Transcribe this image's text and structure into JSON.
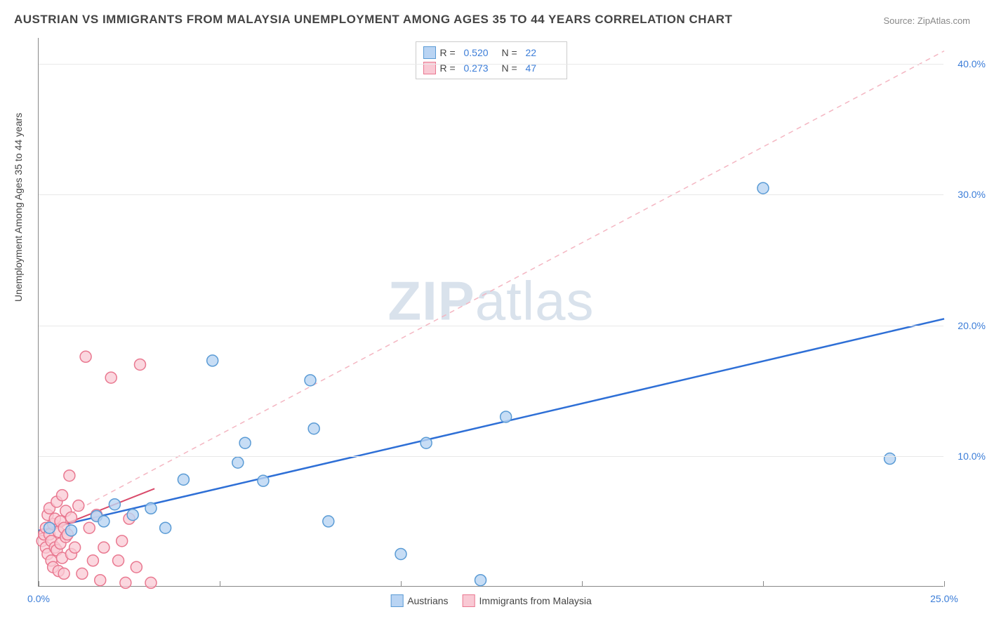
{
  "title": "AUSTRIAN VS IMMIGRANTS FROM MALAYSIA UNEMPLOYMENT AMONG AGES 35 TO 44 YEARS CORRELATION CHART",
  "source": "Source: ZipAtlas.com",
  "watermark": {
    "zip": "ZIP",
    "atlas": "atlas"
  },
  "ylabel": "Unemployment Among Ages 35 to 44 years",
  "chart": {
    "type": "scatter",
    "background_color": "#ffffff",
    "grid_color": "#e8e8e8",
    "axis_color": "#888888",
    "tick_label_color": "#3b7dd8",
    "xlim": [
      0,
      25
    ],
    "ylim": [
      0,
      42
    ],
    "xticks": [
      0,
      5,
      10,
      15,
      20,
      25
    ],
    "xtick_labels": [
      "0.0%",
      "",
      "",
      "",
      "",
      "25.0%"
    ],
    "yticks": [
      10,
      20,
      30,
      40
    ],
    "ytick_labels": [
      "10.0%",
      "20.0%",
      "30.0%",
      "40.0%"
    ],
    "marker_radius": 8,
    "marker_stroke_width": 1.5,
    "series": {
      "austrians": {
        "label": "Austrians",
        "fill": "#b9d4f3",
        "stroke": "#5a9bd5",
        "R": "0.520",
        "N": "22",
        "points": [
          [
            0.3,
            4.5
          ],
          [
            0.9,
            4.3
          ],
          [
            1.6,
            5.4
          ],
          [
            1.8,
            5.0
          ],
          [
            2.1,
            6.3
          ],
          [
            2.6,
            5.5
          ],
          [
            3.1,
            6.0
          ],
          [
            3.5,
            4.5
          ],
          [
            4.0,
            8.2
          ],
          [
            4.8,
            17.3
          ],
          [
            5.5,
            9.5
          ],
          [
            5.7,
            11.0
          ],
          [
            6.2,
            8.1
          ],
          [
            7.5,
            15.8
          ],
          [
            7.6,
            12.1
          ],
          [
            8.0,
            5.0
          ],
          [
            10.7,
            11.0
          ],
          [
            10.0,
            2.5
          ],
          [
            12.9,
            13.0
          ],
          [
            12.2,
            0.5
          ],
          [
            20.0,
            30.5
          ],
          [
            23.5,
            9.8
          ]
        ],
        "trend_solid": {
          "x1": 0,
          "y1": 4.3,
          "x2": 25,
          "y2": 20.5,
          "stroke": "#2e6fd6",
          "width": 2.5
        },
        "trend_dashed": {
          "x1": 0,
          "y1": 4.3,
          "x2": 25,
          "y2": 41.0,
          "stroke": "#f4b6c2",
          "width": 1.5,
          "dash": "7,6"
        }
      },
      "malaysia": {
        "label": "Immigrants from Malaysia",
        "fill": "#f9c9d4",
        "stroke": "#e97890",
        "R": "0.273",
        "N": "47",
        "points": [
          [
            0.1,
            3.5
          ],
          [
            0.15,
            4.0
          ],
          [
            0.2,
            4.5
          ],
          [
            0.2,
            3.0
          ],
          [
            0.25,
            5.5
          ],
          [
            0.25,
            2.5
          ],
          [
            0.3,
            6.0
          ],
          [
            0.3,
            4.0
          ],
          [
            0.35,
            3.5
          ],
          [
            0.35,
            2.0
          ],
          [
            0.4,
            4.8
          ],
          [
            0.4,
            1.5
          ],
          [
            0.45,
            5.2
          ],
          [
            0.45,
            3.0
          ],
          [
            0.5,
            6.5
          ],
          [
            0.5,
            2.8
          ],
          [
            0.55,
            4.2
          ],
          [
            0.55,
            1.2
          ],
          [
            0.6,
            5.0
          ],
          [
            0.6,
            3.3
          ],
          [
            0.65,
            7.0
          ],
          [
            0.65,
            2.2
          ],
          [
            0.7,
            4.5
          ],
          [
            0.7,
            1.0
          ],
          [
            0.75,
            5.8
          ],
          [
            0.75,
            3.8
          ],
          [
            0.8,
            4.0
          ],
          [
            0.85,
            8.5
          ],
          [
            0.9,
            2.5
          ],
          [
            0.9,
            5.3
          ],
          [
            1.0,
            3.0
          ],
          [
            1.1,
            6.2
          ],
          [
            1.2,
            1.0
          ],
          [
            1.3,
            17.6
          ],
          [
            1.4,
            4.5
          ],
          [
            1.5,
            2.0
          ],
          [
            1.6,
            5.5
          ],
          [
            1.7,
            0.5
          ],
          [
            1.8,
            3.0
          ],
          [
            2.0,
            16.0
          ],
          [
            2.2,
            2.0
          ],
          [
            2.4,
            0.3
          ],
          [
            2.5,
            5.2
          ],
          [
            2.7,
            1.5
          ],
          [
            2.8,
            17.0
          ],
          [
            3.1,
            0.3
          ],
          [
            2.3,
            3.5
          ]
        ],
        "trend_solid": {
          "x1": 0,
          "y1": 4.0,
          "x2": 3.2,
          "y2": 7.5,
          "stroke": "#d94a6a",
          "width": 2.0
        }
      }
    }
  },
  "legend_top": [
    {
      "swatch_fill": "#b9d4f3",
      "swatch_stroke": "#5a9bd5",
      "r_label": "R =",
      "r_val": "0.520",
      "n_label": "N =",
      "n_val": "22"
    },
    {
      "swatch_fill": "#f9c9d4",
      "swatch_stroke": "#e97890",
      "r_label": "R =",
      "r_val": "0.273",
      "n_label": "N =",
      "n_val": "47"
    }
  ],
  "legend_bottom": [
    {
      "swatch_fill": "#b9d4f3",
      "swatch_stroke": "#5a9bd5",
      "label": "Austrians"
    },
    {
      "swatch_fill": "#f9c9d4",
      "swatch_stroke": "#e97890",
      "label": "Immigrants from Malaysia"
    }
  ]
}
